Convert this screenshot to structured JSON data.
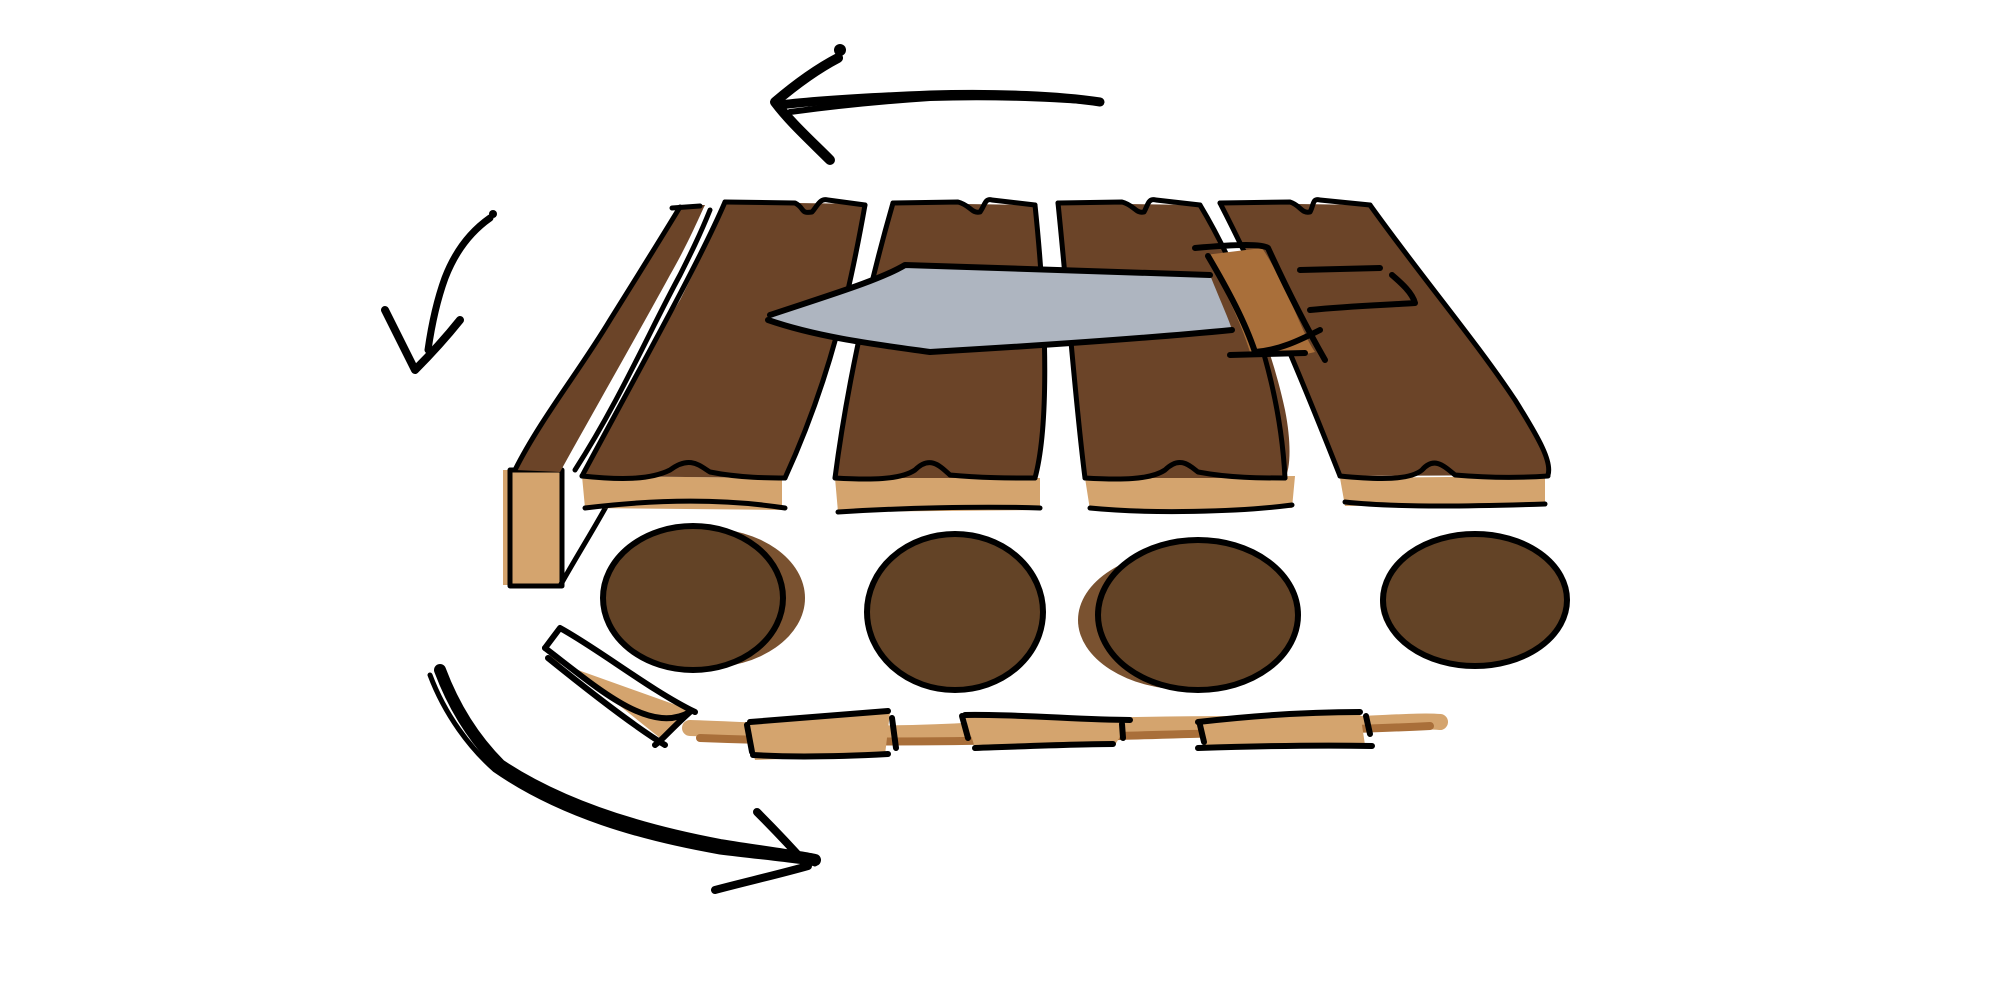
{
  "diagram": {
    "colors": {
      "background": "#ffffff",
      "ink": "#000000",
      "plank_dark": "#6b4428",
      "plank_light": "#d4a46e",
      "log": "#634326",
      "log_shadow": "#7a5230",
      "blade": "#aeb5c0",
      "handle": "#a96f3a",
      "sawdust": "#a96f3a"
    },
    "planks_top": 5,
    "logs": 4,
    "planks_bottom": 4,
    "cycle_arrows": [
      "arrow-top-left",
      "arrow-left-down",
      "arrow-bottom-right"
    ]
  }
}
